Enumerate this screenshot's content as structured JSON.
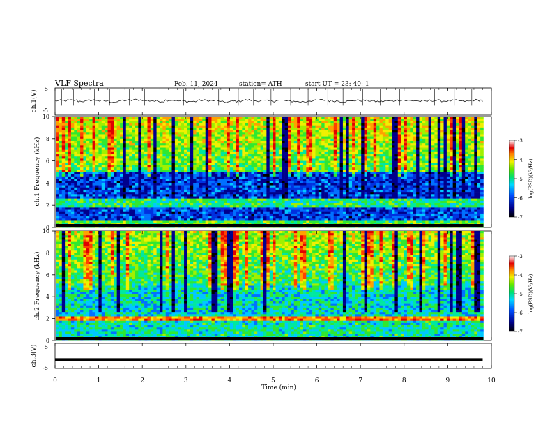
{
  "header": {
    "title": "VLF  Spectra",
    "date": "Feb. 11, 2024",
    "station": "station= ATH",
    "start": "start  UT  =    23: 40: 1"
  },
  "chart_data": [
    {
      "type": "line",
      "name": "ch1-waveform",
      "ylabel": "ch.1(V)",
      "ylim": [
        -5,
        5
      ],
      "yticks": [
        "5",
        "-5"
      ],
      "xlim": [
        0,
        10
      ],
      "values": [
        0.3,
        0.4,
        0.1,
        0.5,
        0.2,
        -0.1,
        0.4,
        0.6,
        0.3,
        0.1,
        0.5,
        0.2,
        0.0,
        0.4,
        0.3,
        -0.2,
        0.1,
        0.5,
        0.3,
        0.2,
        0.4,
        0.1,
        -0.1,
        0.3,
        0.5,
        0.2,
        0.1,
        0.4,
        0.3,
        0.0,
        0.2,
        0.5,
        0.3,
        0.1,
        0.4,
        0.2,
        0.3,
        0.1,
        0.5,
        0.2
      ],
      "spikes": [
        0.15,
        0.42,
        0.9,
        1.25,
        1.7,
        2.05,
        2.5,
        2.95,
        3.35,
        3.75,
        4.2,
        4.55,
        4.95,
        5.4,
        5.8,
        6.25,
        6.6,
        7.05,
        7.45,
        7.9,
        8.3,
        8.7,
        9.15,
        9.55
      ]
    },
    {
      "type": "heatmap",
      "name": "ch1-spectrogram",
      "ylabel": "ch.1 Frequency (kHz)",
      "ylim": [
        0,
        10
      ],
      "yticks": [
        "0",
        "2",
        "4",
        "6",
        "8",
        "10"
      ],
      "xlim": [
        0,
        10
      ],
      "colorbar": {
        "label": "log(PSD)(V²/Hz)",
        "range": [
          -7,
          -3
        ],
        "ticks": [
          "-3",
          "-4",
          "-5",
          "-6",
          "-7"
        ]
      }
    },
    {
      "type": "heatmap",
      "name": "ch2-spectrogram",
      "ylabel": "ch.2 Frequency (kHz)",
      "ylim": [
        0,
        10
      ],
      "yticks": [
        "0",
        "2",
        "4",
        "6",
        "8",
        "10"
      ],
      "xlim": [
        0,
        10
      ],
      "colorbar": {
        "label": "log(PSD)(V²/Hz)",
        "range": [
          -7,
          -3
        ],
        "ticks": [
          "-3",
          "-4",
          "-5",
          "-6",
          "-7"
        ]
      }
    },
    {
      "type": "line",
      "name": "ch3-waveform",
      "ylabel": "ch.3(V)",
      "ylim": [
        -5,
        5
      ],
      "yticks": [
        "5",
        "-5"
      ],
      "xlim": [
        0,
        10
      ],
      "values": [
        -1.5,
        -1.5,
        -1.5,
        -1.5,
        -1.5,
        -1.5,
        -1.5,
        -1.5,
        -1.5,
        -1.5
      ]
    }
  ],
  "xaxis": {
    "label": "Time  (min)",
    "ticks": [
      "0",
      "1",
      "2",
      "3",
      "4",
      "5",
      "6",
      "7",
      "8",
      "9",
      "10"
    ]
  }
}
